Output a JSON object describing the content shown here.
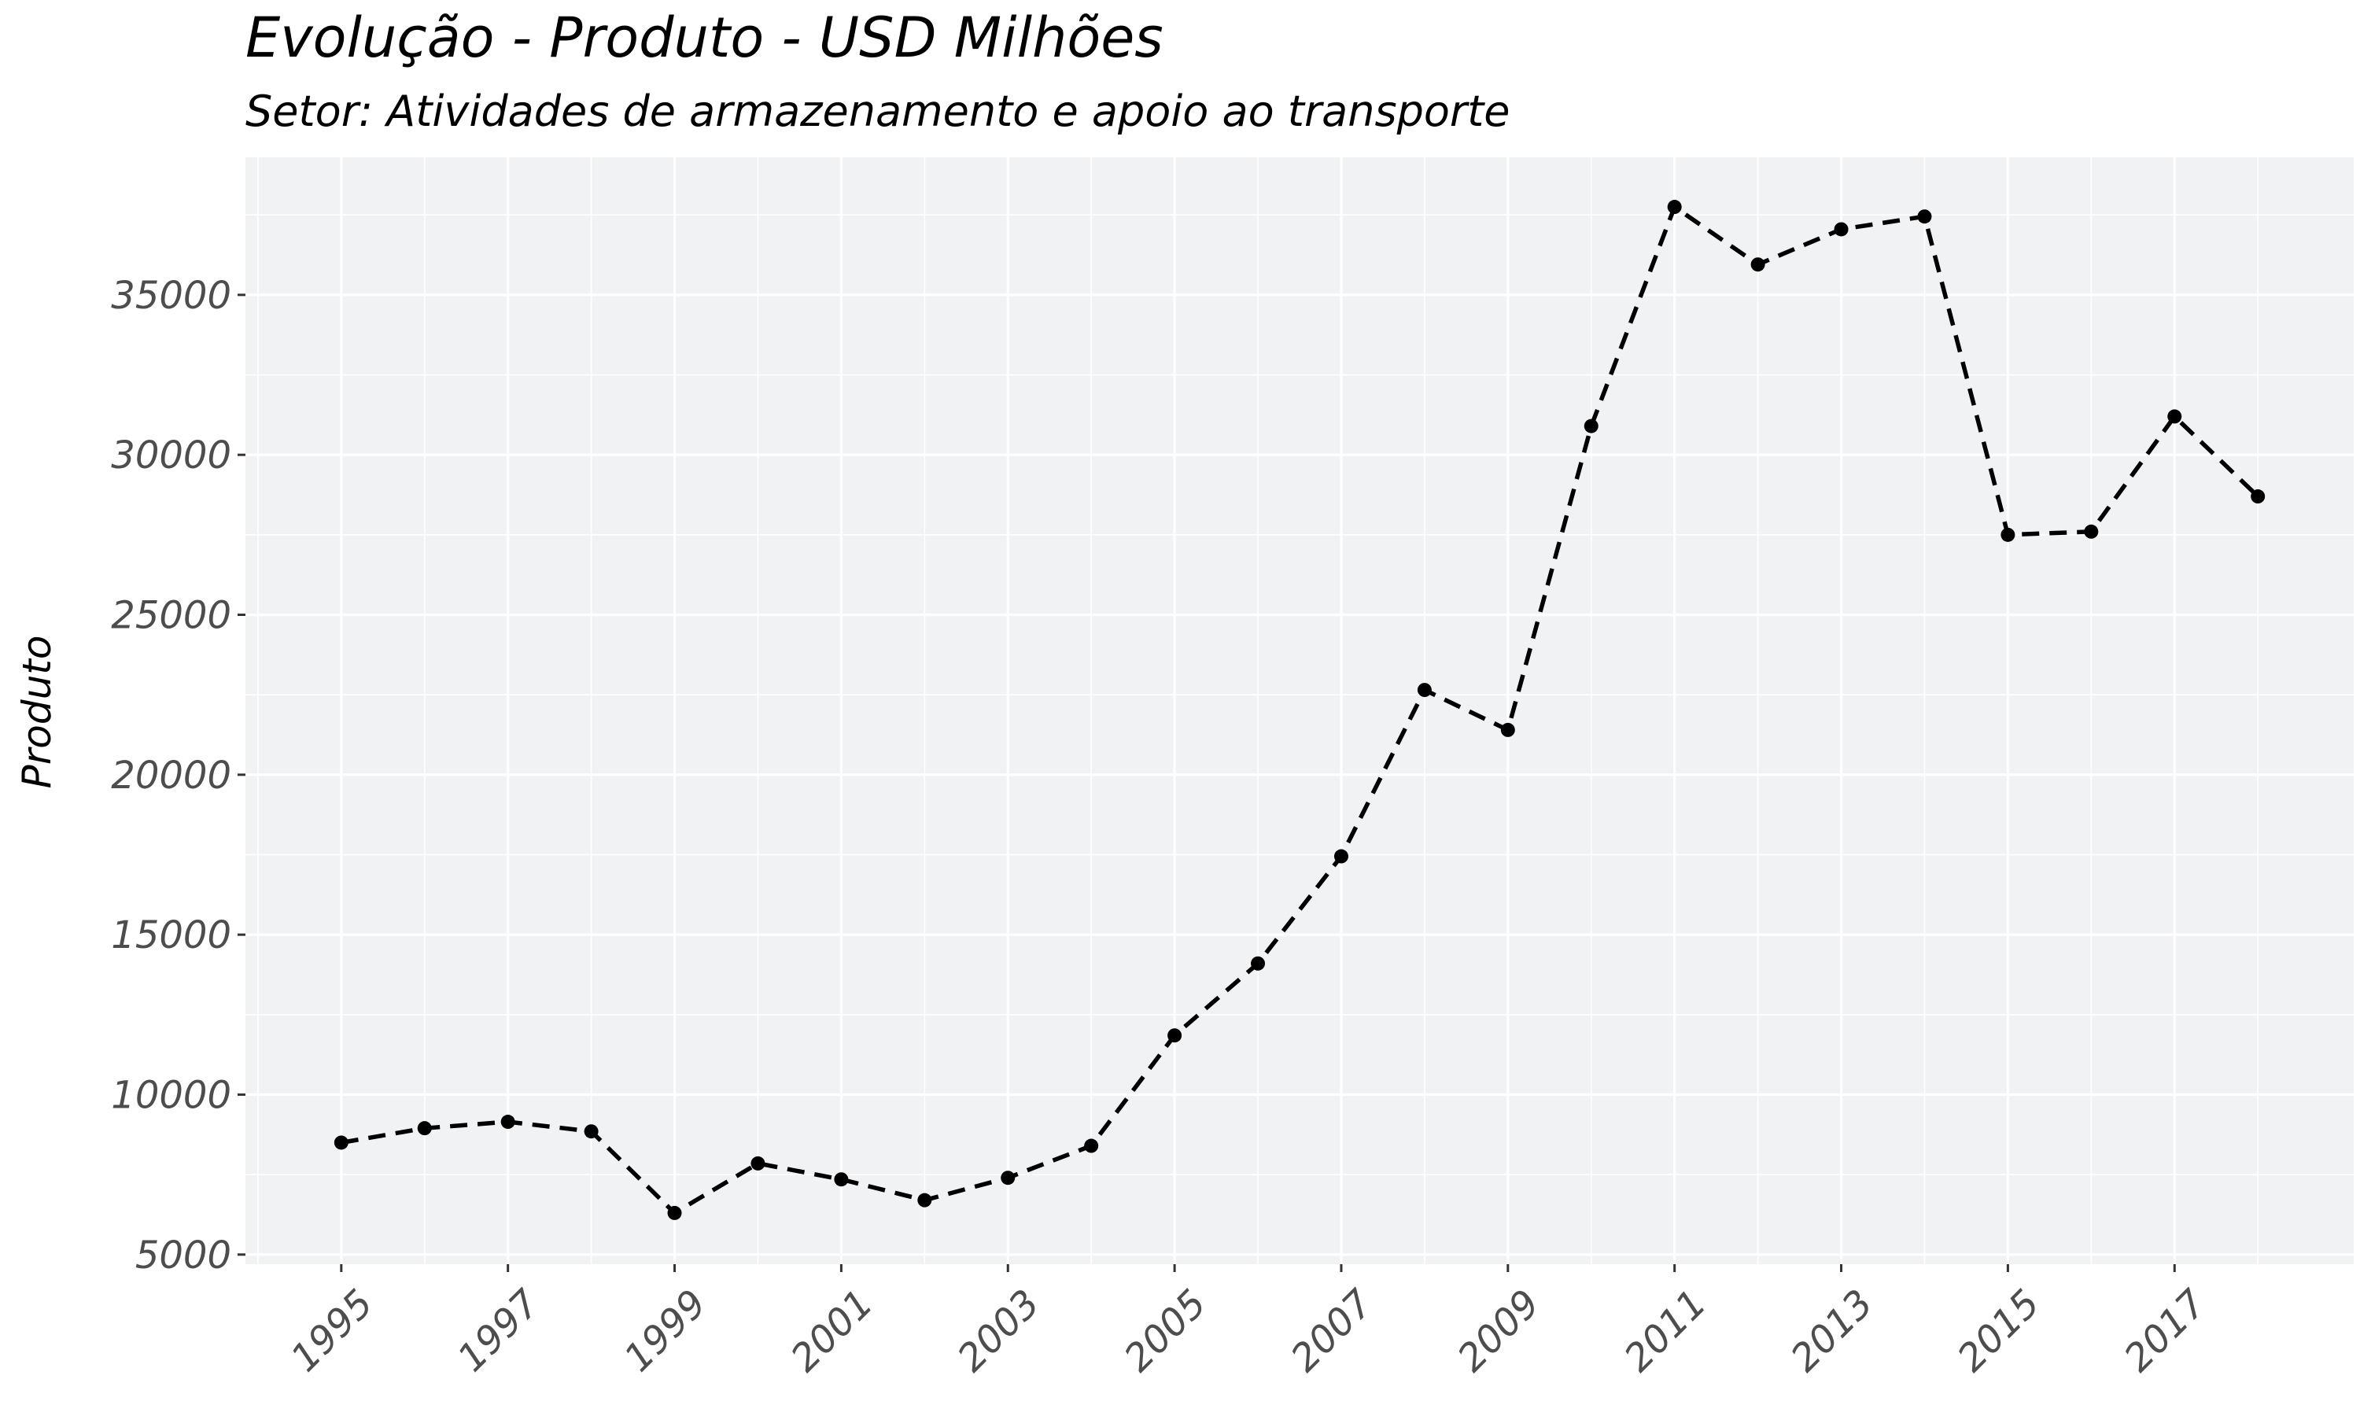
{
  "chart_data": {
    "type": "line",
    "title": "Evolução - Produto - USD Milhões",
    "subtitle": "Setor: Atividades de armazenamento e apoio ao transporte",
    "xlabel": "",
    "ylabel": "Produto",
    "x": [
      1995,
      1996,
      1997,
      1998,
      1999,
      2000,
      2001,
      2002,
      2003,
      2004,
      2005,
      2006,
      2007,
      2008,
      2009,
      2010,
      2011,
      2012,
      2013,
      2014,
      2015,
      2016,
      2017,
      2018
    ],
    "series": [
      {
        "values": [
          8500,
          8950,
          9150,
          8850,
          6300,
          7850,
          7350,
          6700,
          7400,
          8400,
          11850,
          14100,
          17450,
          22650,
          21400,
          30900,
          37750,
          35950,
          37050,
          37450,
          27500,
          27600,
          31200,
          28700
        ],
        "line_style": "dashed",
        "color": "#000000"
      }
    ],
    "xlim": [
      1993.85,
      2019.15
    ],
    "ylim": [
      4700,
      39300
    ],
    "x_ticks": [
      1995,
      1997,
      1999,
      2001,
      2003,
      2005,
      2007,
      2009,
      2011,
      2013,
      2015,
      2017
    ],
    "x_tick_labels": [
      "1995",
      "1997",
      "1999",
      "2001",
      "2003",
      "2005",
      "2007",
      "2009",
      "2011",
      "2013",
      "2015",
      "2017"
    ],
    "y_ticks": [
      5000,
      10000,
      15000,
      20000,
      25000,
      30000,
      35000
    ],
    "y_tick_labels": [
      "5000",
      "10000",
      "15000",
      "20000",
      "25000",
      "30000",
      "35000"
    ],
    "grid": true,
    "panel_background": "#f1f2f4",
    "grid_color": "#ffffff"
  }
}
